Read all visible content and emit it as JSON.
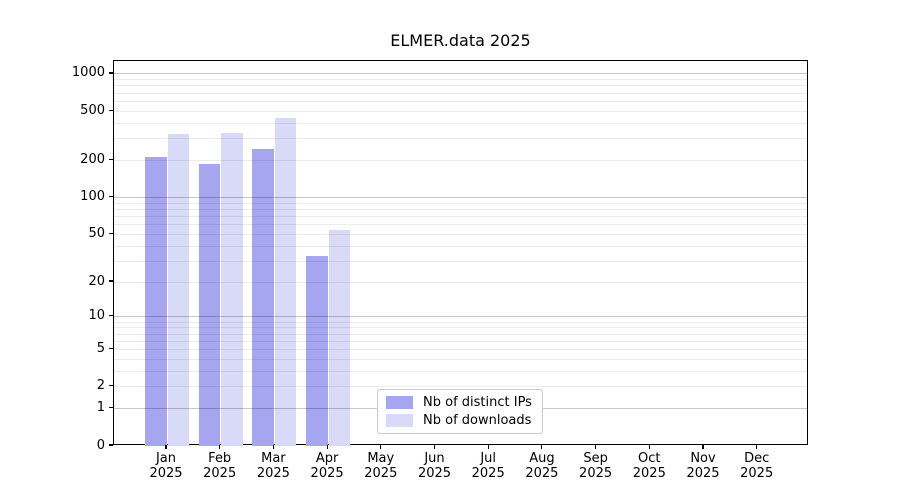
{
  "title": "ELMER.data 2025",
  "chart_data": {
    "type": "bar",
    "title": "ELMER.data 2025",
    "year": "2025",
    "categories": [
      "Jan",
      "Feb",
      "Mar",
      "Apr",
      "May",
      "Jun",
      "Jul",
      "Aug",
      "Sep",
      "Oct",
      "Nov",
      "Dec"
    ],
    "series": [
      {
        "name": "Nb of distinct IPs",
        "color": "#a5a5f0",
        "values": [
          213,
          188,
          249,
          33,
          null,
          null,
          null,
          null,
          null,
          null,
          null,
          null
        ]
      },
      {
        "name": "Nb of downloads",
        "color": "#d9d9f8",
        "values": [
          330,
          332,
          443,
          54,
          null,
          null,
          null,
          null,
          null,
          null,
          null,
          null
        ]
      }
    ],
    "yscale": "log10(value+1)",
    "yticks": [
      0,
      1,
      2,
      5,
      10,
      20,
      50,
      100,
      200,
      500,
      1000
    ],
    "ylim": [
      0,
      1270
    ],
    "grid": "horizontal major+minor, drawn over bars",
    "legend_position": "bottom-center",
    "colors": {
      "grid_major": "#c7c7c7",
      "grid_minor": "#ececec",
      "axis": "#000000",
      "background": "#ffffff"
    }
  }
}
